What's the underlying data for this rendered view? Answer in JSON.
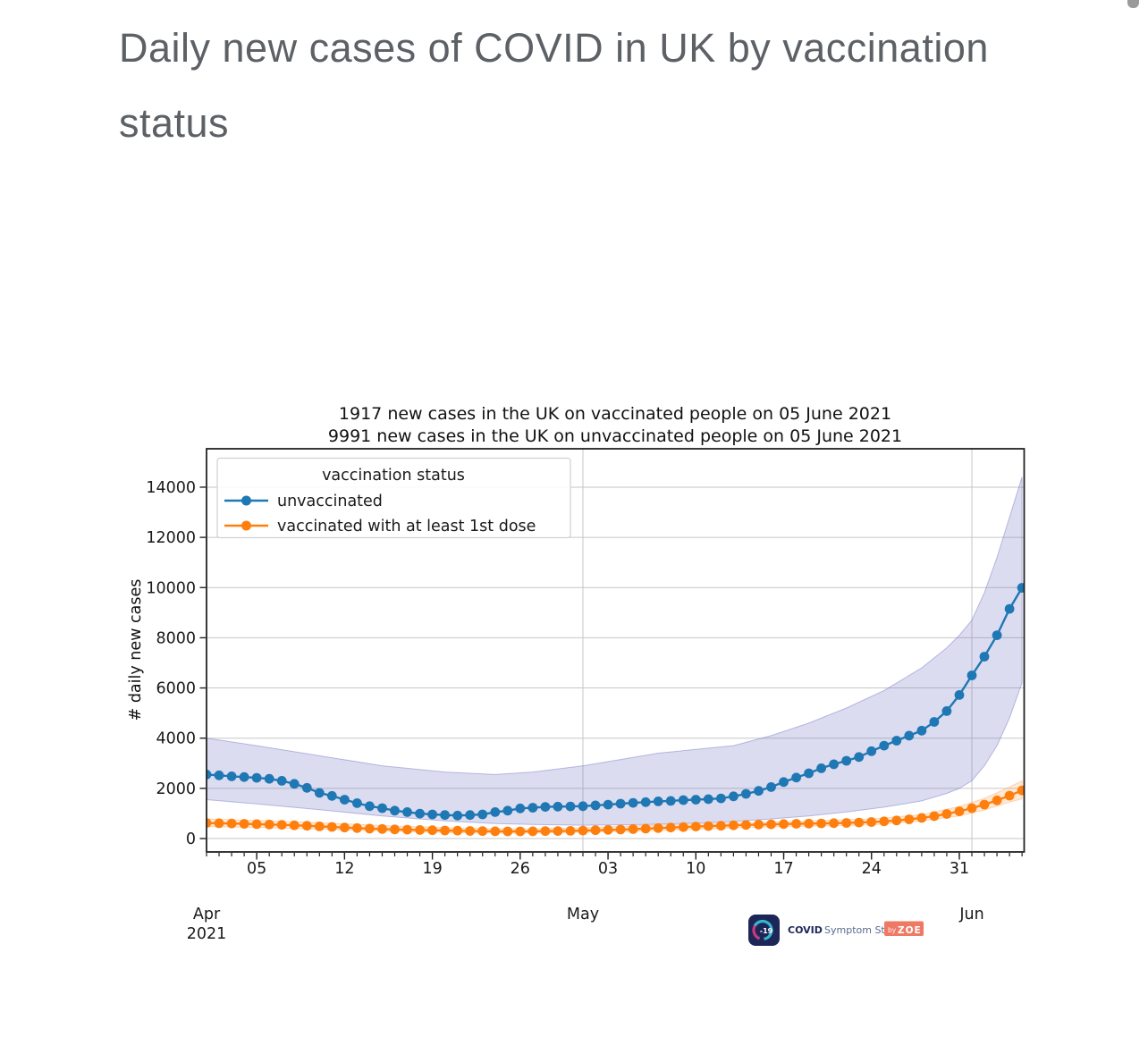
{
  "page": {
    "heading": "Daily new cases of COVID in UK by vaccination status"
  },
  "chart_data": {
    "type": "line",
    "title_lines": [
      "1917 new cases in the UK on vaccinated people on 05 June 2021",
      "9991 new cases in the UK on unvaccinated people on 05 June 2021"
    ],
    "ylabel": "# daily new cases",
    "x_start_date": "2021-04-01",
    "x_end_date": "2021-06-05",
    "n_days": 66,
    "grid": true,
    "y_ticks": [
      0,
      2000,
      4000,
      6000,
      8000,
      10000,
      12000,
      14000
    ],
    "ylim": [
      0,
      15500
    ],
    "x_major_ticks": [
      {
        "day": 4,
        "label": "05"
      },
      {
        "day": 11,
        "label": "12"
      },
      {
        "day": 18,
        "label": "19"
      },
      {
        "day": 25,
        "label": "26"
      },
      {
        "day": 32,
        "label": "03"
      },
      {
        "day": 39,
        "label": "10"
      },
      {
        "day": 46,
        "label": "17"
      },
      {
        "day": 53,
        "label": "24"
      },
      {
        "day": 60,
        "label": "31"
      }
    ],
    "month_gridline_days": [
      30,
      61
    ],
    "month_labels": [
      {
        "day": 0,
        "label": "Apr",
        "sublabel": "2021"
      },
      {
        "day": 30,
        "label": "May",
        "sublabel": ""
      },
      {
        "day": 61,
        "label": "Jun",
        "sublabel": ""
      }
    ],
    "legend": {
      "title": "vaccination status",
      "position": "upper left",
      "entries": [
        {
          "label": "unvaccinated",
          "color": "#1f77b4"
        },
        {
          "label": "vaccinated with at least 1st dose",
          "color": "#ff7f0e"
        }
      ]
    },
    "series": [
      {
        "name": "unvaccinated",
        "color": "#1f77b4",
        "band_fill": "rgba(111,115,195,0.25)",
        "band_edge": "rgba(111,115,195,0.45)",
        "values": [
          2550,
          2520,
          2480,
          2450,
          2420,
          2380,
          2300,
          2180,
          2020,
          1820,
          1700,
          1550,
          1410,
          1290,
          1210,
          1110,
          1055,
          995,
          960,
          935,
          915,
          935,
          960,
          1055,
          1110,
          1200,
          1230,
          1260,
          1270,
          1280,
          1290,
          1320,
          1350,
          1390,
          1420,
          1450,
          1480,
          1500,
          1530,
          1550,
          1570,
          1600,
          1680,
          1780,
          1900,
          2050,
          2250,
          2430,
          2600,
          2800,
          2960,
          3100,
          3250,
          3480,
          3700,
          3900,
          4100,
          4300,
          4650,
          5080,
          5720,
          6500,
          7250,
          8100,
          9150,
          9991
        ],
        "band_upper": [
          [
            0,
            4000
          ],
          [
            4,
            3700
          ],
          [
            9,
            3300
          ],
          [
            14,
            2900
          ],
          [
            19,
            2650
          ],
          [
            23,
            2550
          ],
          [
            26,
            2650
          ],
          [
            30,
            2900
          ],
          [
            33,
            3150
          ],
          [
            36,
            3400
          ],
          [
            39,
            3550
          ],
          [
            42,
            3700
          ],
          [
            45,
            4100
          ],
          [
            48,
            4600
          ],
          [
            51,
            5200
          ],
          [
            54,
            5900
          ],
          [
            57,
            6800
          ],
          [
            59,
            7600
          ],
          [
            60,
            8100
          ],
          [
            61,
            8700
          ],
          [
            62,
            9800
          ],
          [
            63,
            11200
          ],
          [
            64,
            12800
          ],
          [
            65,
            14400
          ]
        ],
        "band_lower": [
          [
            0,
            1550
          ],
          [
            4,
            1380
          ],
          [
            9,
            1150
          ],
          [
            14,
            900
          ],
          [
            19,
            700
          ],
          [
            23,
            600
          ],
          [
            26,
            560
          ],
          [
            30,
            530
          ],
          [
            35,
            560
          ],
          [
            39,
            620
          ],
          [
            42,
            680
          ],
          [
            45,
            780
          ],
          [
            48,
            900
          ],
          [
            51,
            1060
          ],
          [
            54,
            1250
          ],
          [
            57,
            1500
          ],
          [
            59,
            1800
          ],
          [
            60,
            2000
          ],
          [
            61,
            2300
          ],
          [
            62,
            2900
          ],
          [
            63,
            3700
          ],
          [
            64,
            4800
          ],
          [
            65,
            6200
          ]
        ]
      },
      {
        "name": "vaccinated with at least 1st dose",
        "color": "#ff7f0e",
        "band_fill": "rgba(255,166,90,0.25)",
        "band_edge": "rgba(255,166,90,0.45)",
        "values": [
          620,
          610,
          600,
          588,
          575,
          560,
          545,
          528,
          508,
          486,
          462,
          438,
          415,
          396,
          380,
          365,
          352,
          342,
          332,
          322,
          312,
          303,
          296,
          290,
          286,
          286,
          289,
          294,
          300,
          308,
          318,
          330,
          344,
          360,
          378,
          397,
          417,
          437,
          457,
          476,
          494,
          511,
          527,
          542,
          556,
          568,
          578,
          587,
          595,
          603,
          612,
          623,
          638,
          658,
          685,
          720,
          765,
          822,
          893,
          980,
          1085,
          1210,
          1355,
          1520,
          1710,
          1917
        ],
        "band_upper": [
          [
            0,
            780
          ],
          [
            5,
            700
          ],
          [
            10,
            610
          ],
          [
            15,
            500
          ],
          [
            20,
            420
          ],
          [
            25,
            380
          ],
          [
            30,
            430
          ],
          [
            35,
            520
          ],
          [
            40,
            600
          ],
          [
            45,
            660
          ],
          [
            48,
            700
          ],
          [
            53,
            780
          ],
          [
            57,
            950
          ],
          [
            60,
            1280
          ],
          [
            62,
            1600
          ],
          [
            64,
            2050
          ],
          [
            65,
            2300
          ]
        ],
        "band_lower": [
          [
            0,
            480
          ],
          [
            5,
            430
          ],
          [
            10,
            360
          ],
          [
            15,
            290
          ],
          [
            20,
            230
          ],
          [
            25,
            210
          ],
          [
            30,
            250
          ],
          [
            35,
            300
          ],
          [
            40,
            390
          ],
          [
            45,
            470
          ],
          [
            48,
            490
          ],
          [
            53,
            545
          ],
          [
            57,
            700
          ],
          [
            60,
            900
          ],
          [
            62,
            1140
          ],
          [
            64,
            1450
          ],
          [
            65,
            1580
          ]
        ]
      }
    ]
  },
  "logo": {
    "icon_text": "-19",
    "brand_bold": "COVID",
    "brand_rest": "Symptom Study",
    "badge_by": "by",
    "badge_zoe": "ZOE",
    "icon_bg": "#1d2757",
    "navy": "#1d2757",
    "gray_text": "#5a6b8c",
    "badge_bg": "#ee7a66",
    "arc_cyan": "#35b5cf",
    "arc_pink": "#c9397e"
  }
}
